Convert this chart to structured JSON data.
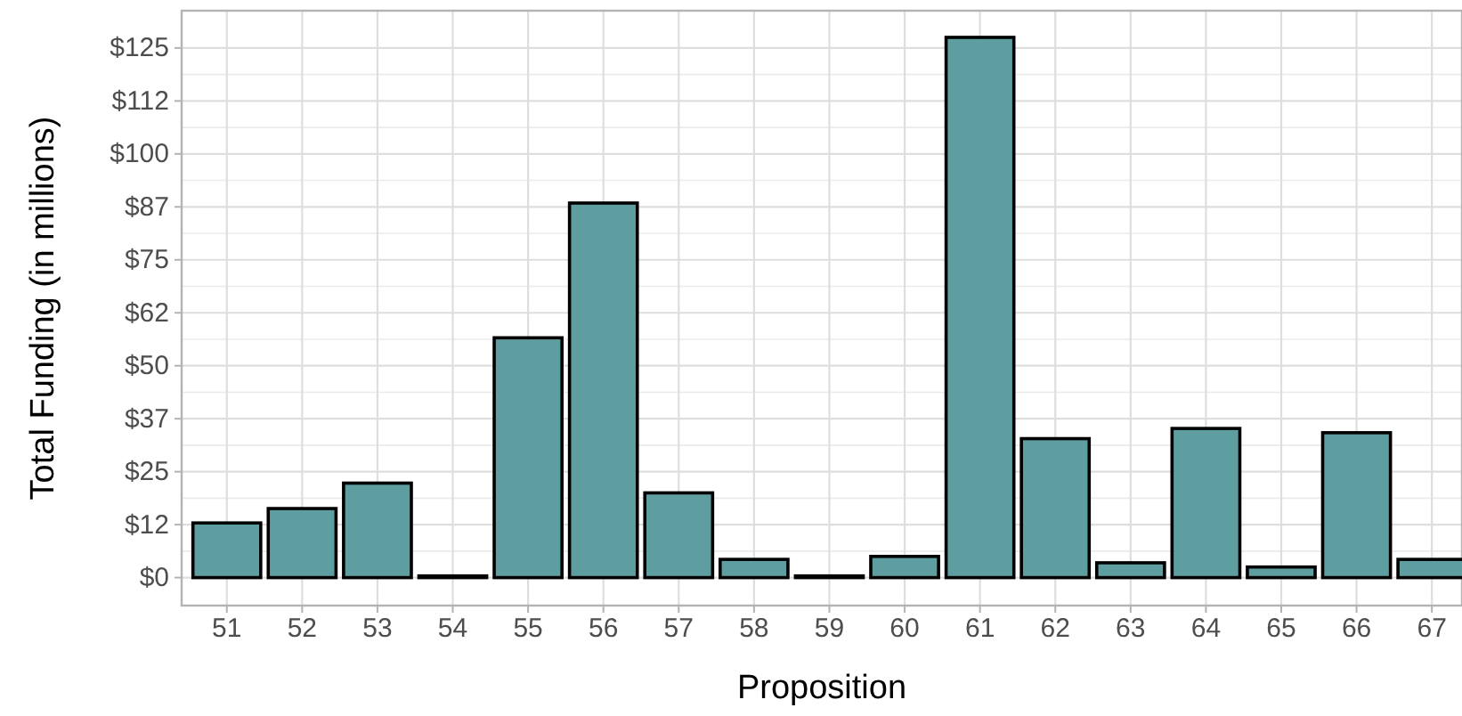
{
  "chart_data": {
    "type": "bar",
    "xlabel": "Proposition",
    "ylabel": "Total Funding (in millions)",
    "categories": [
      "51",
      "52",
      "53",
      "54",
      "55",
      "56",
      "57",
      "58",
      "59",
      "60",
      "61",
      "62",
      "63",
      "64",
      "65",
      "66",
      "67"
    ],
    "values": [
      12.9,
      16.3,
      22.3,
      0.4,
      56.6,
      88.4,
      20.0,
      4.3,
      0.4,
      5.0,
      127.5,
      32.8,
      3.5,
      35.2,
      2.5,
      34.2,
      4.3
    ],
    "color": "#5f9ea0",
    "ylim": [
      -6.6,
      133.8
    ],
    "yticks": [
      {
        "value": 0,
        "label": "$0"
      },
      {
        "value": 12.5,
        "label": "$12"
      },
      {
        "value": 25,
        "label": "$25"
      },
      {
        "value": 37.5,
        "label": "$37"
      },
      {
        "value": 50,
        "label": "$50"
      },
      {
        "value": 62.5,
        "label": "$62"
      },
      {
        "value": 75,
        "label": "$75"
      },
      {
        "value": 87.5,
        "label": "$87"
      },
      {
        "value": 100,
        "label": "$100"
      },
      {
        "value": 112.5,
        "label": "$112"
      },
      {
        "value": 125,
        "label": "$125"
      }
    ],
    "grid": true
  }
}
